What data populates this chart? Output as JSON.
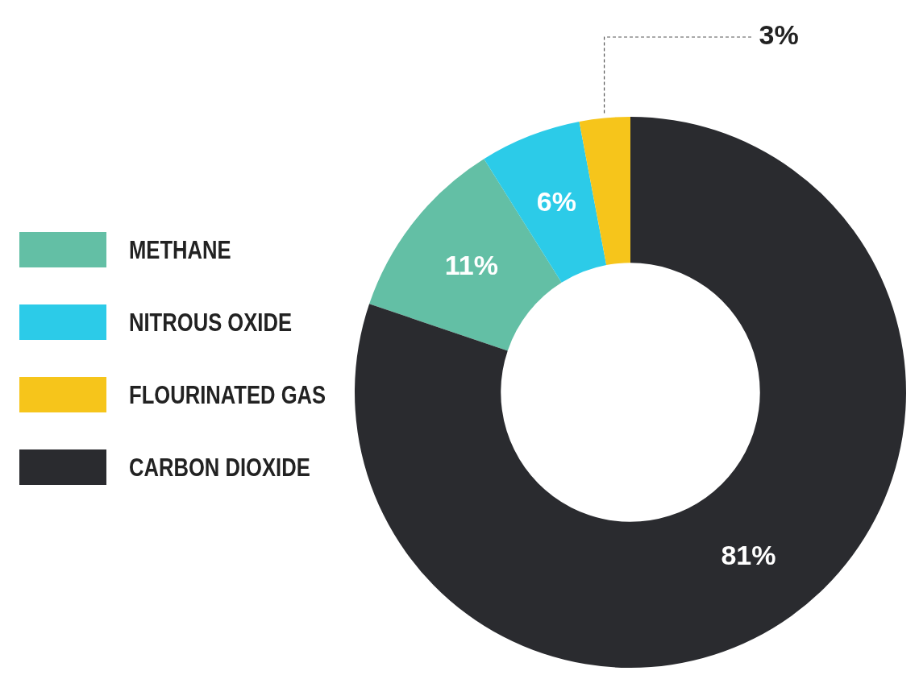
{
  "chart_data": {
    "type": "donut",
    "categories": [
      "METHANE",
      "NITROUS OXIDE",
      "FLOURINATED GAS",
      "CARBON DIOXIDE"
    ],
    "values": [
      11,
      6,
      3,
      81
    ],
    "colors": [
      "#63bfa5",
      "#2ccbe8",
      "#f6c51b",
      "#2a2b2f"
    ],
    "value_labels": [
      "11%",
      "6%",
      "3%",
      "81%"
    ],
    "legend": "left"
  }
}
